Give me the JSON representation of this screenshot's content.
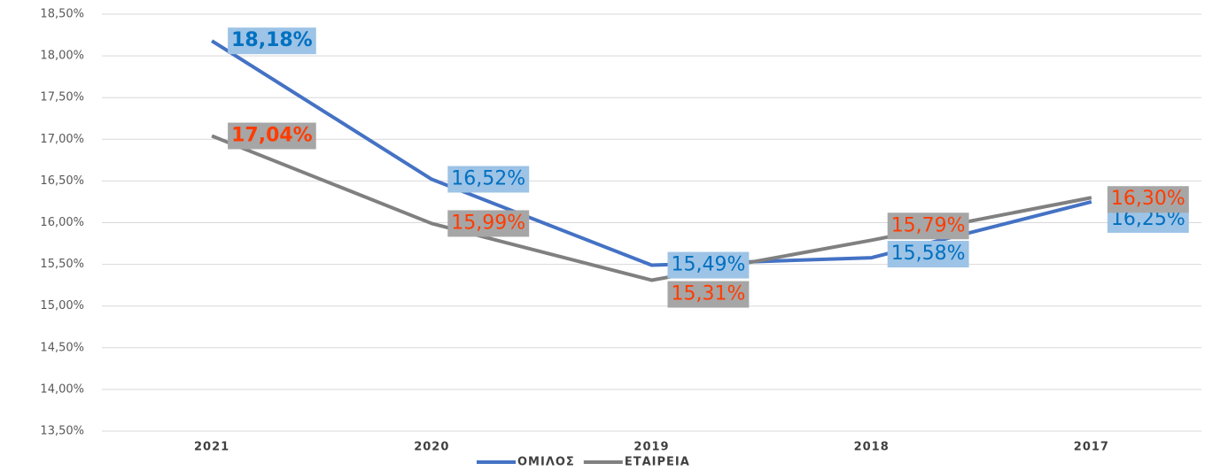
{
  "chart_data": {
    "type": "line",
    "categories": [
      "2021",
      "2020",
      "2019",
      "2018",
      "2017"
    ],
    "series": [
      {
        "name": "ΟΜΙΛΟΣ",
        "color": "#4472c4",
        "values": [
          18.18,
          16.52,
          15.49,
          15.58,
          16.25
        ],
        "value_labels": [
          "18,18%",
          "16,52%",
          "15,49%",
          "15,58%",
          "16,25%"
        ]
      },
      {
        "name": "ΕΤΑΙΡΕΙΑ",
        "color": "#808080",
        "values": [
          17.04,
          15.99,
          15.31,
          15.79,
          16.3
        ],
        "value_labels": [
          "17,04%",
          "15,99%",
          "15,31%",
          "15,79%",
          "16,30%"
        ]
      }
    ],
    "ylim": [
      13.5,
      18.5
    ],
    "yticks": [
      {
        "value": 13.5,
        "label": "13,50%"
      },
      {
        "value": 14.0,
        "label": "14,00%"
      },
      {
        "value": 14.5,
        "label": "14,50%"
      },
      {
        "value": 15.0,
        "label": "15,00%"
      },
      {
        "value": 15.5,
        "label": "15,50%"
      },
      {
        "value": 16.0,
        "label": "16,00%"
      },
      {
        "value": 16.5,
        "label": "16,50%"
      },
      {
        "value": 17.0,
        "label": "17,00%"
      },
      {
        "value": 17.5,
        "label": "17,50%"
      },
      {
        "value": 18.0,
        "label": "18,00%"
      },
      {
        "value": 18.5,
        "label": "18,50%"
      }
    ],
    "grid": true,
    "legend": "bottom"
  }
}
